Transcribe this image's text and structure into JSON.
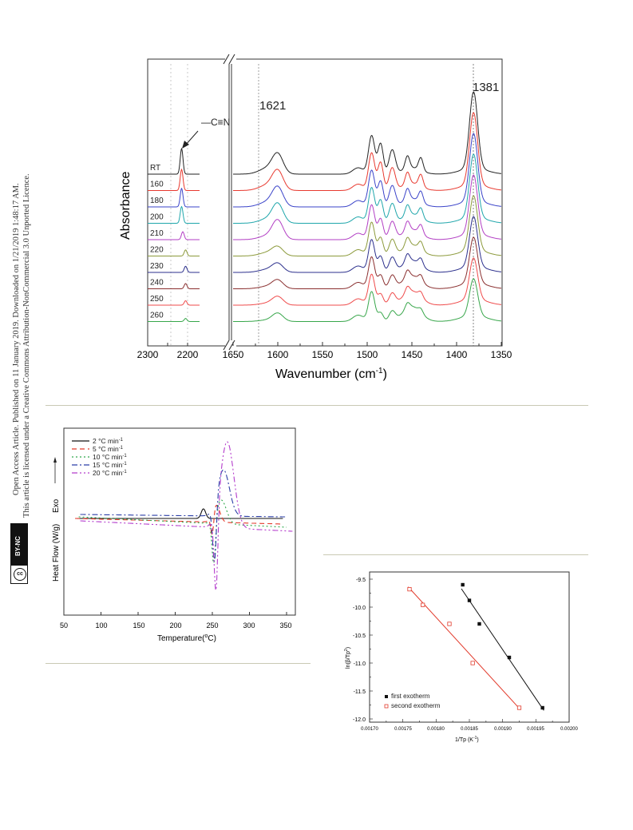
{
  "sidebar": {
    "line1": "Open Access Article. Published on 11 January 2019. Downloaded on 1/21/2019 1:48:17 AM.",
    "line2": "This article is licensed under a Creative Commons Attribution-NonCommercial 3.0 Unported Licence.",
    "badge": "BY-NC",
    "cc": "cc"
  },
  "figures": {
    "ftir": {
      "ylabel": "Absorbance",
      "xlabel": "Wavenumber (cm",
      "xlabel_sup": "-1",
      "xlabel_end": ")",
      "bond_label": "—C≡N",
      "peak_1621": "1621",
      "peak_1381": "1381",
      "ticks_left": [
        "2300",
        "2200"
      ],
      "ticks_right": [
        "1650",
        "1600",
        "1550",
        "1500",
        "1450",
        "1400",
        "1350"
      ],
      "temps": [
        "RT",
        "160",
        "180",
        "200",
        "210",
        "220",
        "230",
        "240",
        "250",
        "260"
      ],
      "colors": [
        "#222222",
        "#e8392f",
        "#3a43c9",
        "#1fa6ab",
        "#b23fc4",
        "#8c9a3b",
        "#2b2f8c",
        "#8a2f2f",
        "#ef4b4b",
        "#37a64a"
      ]
    },
    "dsc": {
      "ylabel": "Heat Flow (W/g)",
      "exo_label": "Exo",
      "xlabel": "Temperature(",
      "xlabel_sup": "o",
      "xlabel_end": "C)",
      "xticks": [
        "50",
        "100",
        "150",
        "200",
        "250",
        "300",
        "350"
      ],
      "legend": [
        {
          "label": "2 °C min",
          "sup": "-1",
          "color": "#111111",
          "dash": ""
        },
        {
          "label": "5 °C min",
          "sup": "-1",
          "color": "#e23a2b",
          "dash": "6 4"
        },
        {
          "label": "10 °C min",
          "sup": "-1",
          "color": "#2ea84a",
          "dash": "2 3"
        },
        {
          "label": "15 °C min",
          "sup": "-1",
          "color": "#2b3ea6",
          "dash": "7 3 2 3"
        },
        {
          "label": "20 °C min",
          "sup": "-1",
          "color": "#b43ccc",
          "dash": "7 3 2 3 2 3"
        }
      ]
    },
    "kissinger": {
      "ylabel": "ln(β/Tp",
      "ylabel_sup": "2",
      "ylabel_end": ")",
      "xlabel": "1/Tp (K",
      "xlabel_sup": "-1",
      "xlabel_end": ")",
      "yticks": [
        "-9.5",
        "-10.0",
        "-10.5",
        "-11.0",
        "-11.5",
        "-12.0"
      ],
      "xticks": [
        "0.00170",
        "0.00175",
        "0.00180",
        "0.00185",
        "0.00190",
        "0.00195",
        "0.00200"
      ],
      "legend_first": "first exotherm",
      "legend_second": "second exotherm"
    }
  },
  "chart_data": [
    {
      "type": "line",
      "xlabel": "Wavenumber (cm-1)",
      "ylabel": "Absorbance",
      "x_breaks": [
        [
          2300,
          2170
        ],
        [
          1650,
          1350
        ]
      ],
      "series": [
        {
          "name": "RT"
        },
        {
          "name": "160"
        },
        {
          "name": "180"
        },
        {
          "name": "200"
        },
        {
          "name": "210"
        },
        {
          "name": "220"
        },
        {
          "name": "230"
        },
        {
          "name": "240"
        },
        {
          "name": "250"
        },
        {
          "name": "260"
        }
      ],
      "annotations": [
        "1621",
        "1381",
        "—C≡N"
      ]
    },
    {
      "type": "line",
      "xlabel": "Temperature(oC)",
      "ylabel": "Heat Flow (W/g)",
      "xlim": [
        50,
        360
      ],
      "series": [
        {
          "name": "2 °C min-1",
          "peak_T": 238
        },
        {
          "name": "5 °C min-1",
          "peak_T": 250
        },
        {
          "name": "10 °C min-1",
          "peak_T": 253
        },
        {
          "name": "15 °C min-1",
          "peak_T": 254
        },
        {
          "name": "20 °C min-1",
          "peak_T": 255
        }
      ]
    },
    {
      "type": "scatter",
      "xlabel": "1/Tp (K-1)",
      "ylabel": "ln(β/Tp2)",
      "xlim": [
        0.0017,
        0.002
      ],
      "ylim": [
        -12.0,
        -9.3
      ],
      "series": [
        {
          "name": "first exotherm",
          "color": "#111111",
          "marker": "filled-square",
          "x": [
            0.00184,
            0.00185,
            0.001865,
            0.00191,
            0.00196
          ],
          "y": [
            -9.6,
            -9.88,
            -10.3,
            -10.9,
            -11.8
          ]
        },
        {
          "name": "second exotherm",
          "color": "#e23a2b",
          "marker": "open-square",
          "x": [
            0.00176,
            0.00178,
            0.00182,
            0.001855,
            0.001925
          ],
          "y": [
            -9.68,
            -9.96,
            -10.3,
            -11.0,
            -11.8
          ]
        }
      ]
    }
  ]
}
